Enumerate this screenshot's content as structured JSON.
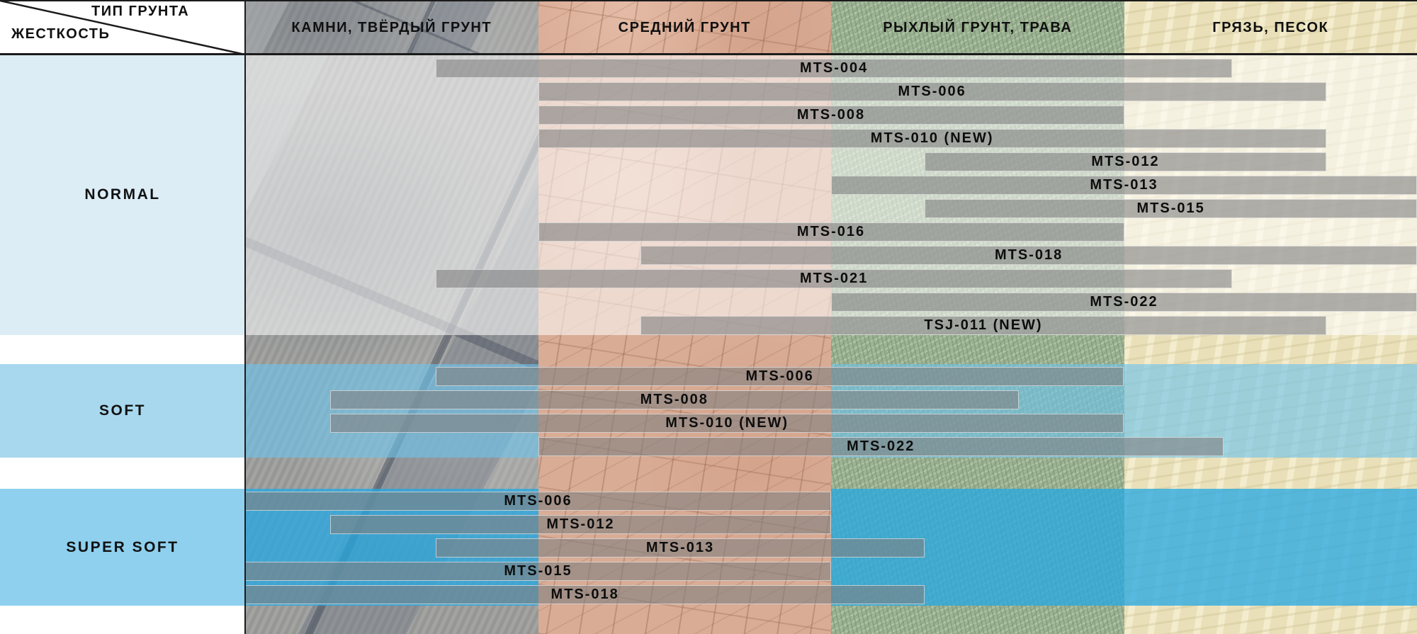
{
  "corner": {
    "top_label": "ТИП ГРУНТА",
    "bottom_label": "ЖЕСТКОСТЬ"
  },
  "colors": {
    "band_label_bg": [
      "#dcedf6",
      "#a8d8ee",
      "#8ed0ee"
    ],
    "band_overlays": [
      "rgba(255,255,255,0.55)",
      "rgba(108,196,235,0.62)",
      "rgba(38,168,226,0.76)"
    ],
    "overlay_columns": [
      [
        0,
        1,
        2,
        3
      ],
      [
        0,
        2,
        3
      ],
      [
        0,
        2,
        3
      ]
    ],
    "bar_fill": "rgba(128,128,128,0.6)",
    "bar_border": "rgba(255,255,255,0.55)",
    "grid_line": "#1b1b1b",
    "surface_base": [
      "#9d9e9c",
      "#d9ac96",
      "#9eb496",
      "#e9e0ba"
    ]
  },
  "chart_data": {
    "type": "gantt-matrix",
    "title": "",
    "x_axis": {
      "categories": [
        "КАМНИ, ТВЁРДЫЙ ГРУНТ",
        "СРЕДНИЙ ГРУНТ",
        "РЫХЛЫЙ ГРУНТ, ТРАВА",
        "ГРЯЗЬ, ПЕСОК"
      ],
      "surface_ids": [
        "rocks",
        "medium",
        "loose",
        "mud"
      ],
      "range": [
        0,
        4
      ]
    },
    "rows": [
      {
        "hardness": "NORMAL",
        "tires": [
          {
            "model": "MTS-004",
            "span": [
              0.65,
              3.37
            ]
          },
          {
            "model": "MTS-006",
            "span": [
              1.0,
              3.69
            ]
          },
          {
            "model": "MTS-008",
            "span": [
              1.0,
              3.0
            ]
          },
          {
            "model": "MTS-010 (NEW)",
            "span": [
              1.0,
              3.69
            ]
          },
          {
            "model": "MTS-012",
            "span": [
              2.32,
              3.69
            ]
          },
          {
            "model": "MTS-013",
            "span": [
              2.0,
              4.0
            ]
          },
          {
            "model": "MTS-015",
            "span": [
              2.32,
              4.0
            ]
          },
          {
            "model": "MTS-016",
            "span": [
              1.0,
              3.0
            ]
          },
          {
            "model": "MTS-018",
            "span": [
              1.35,
              4.0
            ]
          },
          {
            "model": "MTS-021",
            "span": [
              0.65,
              3.37
            ]
          },
          {
            "model": "MTS-022",
            "span": [
              2.0,
              4.0
            ]
          },
          {
            "model": "TSJ-011 (NEW)",
            "span": [
              1.35,
              3.69
            ]
          }
        ]
      },
      {
        "hardness": "SOFT",
        "tires": [
          {
            "model": "MTS-006",
            "span": [
              0.65,
              3.0
            ]
          },
          {
            "model": "MTS-008",
            "span": [
              0.29,
              2.64
            ]
          },
          {
            "model": "MTS-010 (NEW)",
            "span": [
              0.29,
              3.0
            ]
          },
          {
            "model": "MTS-022",
            "span": [
              1.0,
              3.34
            ]
          }
        ]
      },
      {
        "hardness": "SUPER SOFT",
        "tires": [
          {
            "model": "MTS-006",
            "span": [
              0.0,
              2.0
            ]
          },
          {
            "model": "MTS-012",
            "span": [
              0.29,
              2.0
            ]
          },
          {
            "model": "MTS-013",
            "span": [
              0.65,
              2.32
            ]
          },
          {
            "model": "MTS-015",
            "span": [
              0.0,
              2.0
            ]
          },
          {
            "model": "MTS-018",
            "span": [
              0.0,
              2.32
            ]
          }
        ]
      }
    ]
  }
}
